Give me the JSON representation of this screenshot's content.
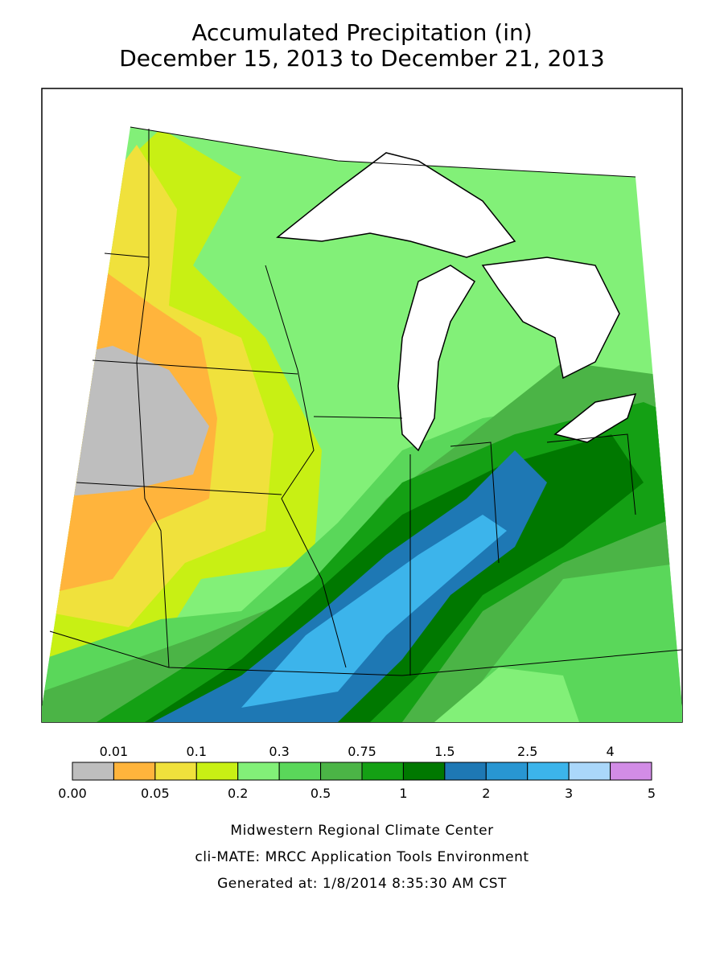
{
  "header": {
    "title": "Accumulated Precipitation (in)",
    "subtitle": "December 15, 2013 to December 21, 2013"
  },
  "legend": {
    "labels": [
      "0.00",
      "0.01",
      "0.05",
      "0.1",
      "0.2",
      "0.3",
      "0.5",
      "0.75",
      "1",
      "1.5",
      "2",
      "2.5",
      "3",
      "4",
      "5"
    ],
    "colors": [
      "#bebebe",
      "#ffb43c",
      "#f0e13c",
      "#c8f014",
      "#82f078",
      "#5ad75a",
      "#4bb446",
      "#14a014",
      "#007800",
      "#1e78b4",
      "#2896d2",
      "#3cb4eb",
      "#aad7fa",
      "#d28ce6"
    ]
  },
  "footer": {
    "lines": [
      "Midwestern Regional Climate Center",
      "cli-MATE: MRCC Application Tools Environment",
      "Generated at: 1/8/2014 8:35:30 AM CST"
    ]
  }
}
